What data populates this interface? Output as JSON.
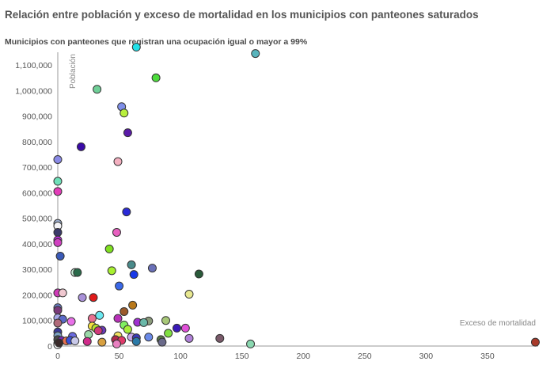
{
  "title": "Relación entre población y exceso de mortalidad en los municipios con panteones saturados",
  "subtitle": "Municipios con panteones que registran una ocupación igual o mayor a 99%",
  "chart_data": {
    "type": "scatter",
    "xlabel": "Exceso de mortalidad",
    "ylabel": "Población",
    "xlim": [
      0,
      390
    ],
    "ylim": [
      0,
      1150000
    ],
    "xticks": [
      0,
      50,
      100,
      150,
      200,
      250,
      300,
      350
    ],
    "yticks": [
      0,
      100000,
      200000,
      300000,
      400000,
      500000,
      600000,
      700000,
      800000,
      900000,
      1000000,
      1100000
    ],
    "xtick_labels": [
      "0",
      "50",
      "100",
      "150",
      "200",
      "250",
      "300",
      "350"
    ],
    "ytick_labels": [
      "0",
      "100,000",
      "200,000",
      "300,000",
      "400,000",
      "500,000",
      "600,000",
      "700,000",
      "800,000",
      "900,000",
      "1,000,000",
      "1,100,000"
    ],
    "grid": false,
    "points": [
      {
        "x": 64,
        "y": 1170000,
        "color": "#22e0e8"
      },
      {
        "x": 161,
        "y": 1145000,
        "color": "#58b4bc"
      },
      {
        "x": 32,
        "y": 1005000,
        "color": "#6fcf97"
      },
      {
        "x": 80,
        "y": 1050000,
        "color": "#4ddc3c"
      },
      {
        "x": 52,
        "y": 937000,
        "color": "#7f8fe8"
      },
      {
        "x": 54,
        "y": 912000,
        "color": "#b8ef3c"
      },
      {
        "x": 57,
        "y": 835000,
        "color": "#5a1aa8"
      },
      {
        "x": 19,
        "y": 780000,
        "color": "#3a0aa8"
      },
      {
        "x": 0,
        "y": 730000,
        "color": "#8a8ae6"
      },
      {
        "x": 49,
        "y": 722000,
        "color": "#f4b0c0"
      },
      {
        "x": 0,
        "y": 645000,
        "color": "#6ee0b8"
      },
      {
        "x": 0,
        "y": 605000,
        "color": "#e23cb8"
      },
      {
        "x": 56,
        "y": 525000,
        "color": "#2a2ad8"
      },
      {
        "x": 0,
        "y": 480000,
        "color": "#9eb0d0"
      },
      {
        "x": 0,
        "y": 470000,
        "color": "#f4f4f8"
      },
      {
        "x": 0,
        "y": 445000,
        "color": "#3a3a6a"
      },
      {
        "x": 48,
        "y": 445000,
        "color": "#e860c0"
      },
      {
        "x": 0,
        "y": 415000,
        "color": "#b82ad8"
      },
      {
        "x": 0,
        "y": 405000,
        "color": "#d040c0"
      },
      {
        "x": 42,
        "y": 380000,
        "color": "#80e020"
      },
      {
        "x": 2,
        "y": 352000,
        "color": "#3a5ab8"
      },
      {
        "x": 60,
        "y": 318000,
        "color": "#4a8a8a"
      },
      {
        "x": 77,
        "y": 305000,
        "color": "#6a70b8"
      },
      {
        "x": 44,
        "y": 295000,
        "color": "#a8f030"
      },
      {
        "x": 14,
        "y": 288000,
        "color": "#c8f0d8"
      },
      {
        "x": 16,
        "y": 288000,
        "color": "#2a6a4a"
      },
      {
        "x": 115,
        "y": 282000,
        "color": "#2a5a3a"
      },
      {
        "x": 62,
        "y": 280000,
        "color": "#1a3ae8"
      },
      {
        "x": 50,
        "y": 235000,
        "color": "#3a68e8"
      },
      {
        "x": 0,
        "y": 208000,
        "color": "#d03ab8"
      },
      {
        "x": 4,
        "y": 208000,
        "color": "#f0c8d0"
      },
      {
        "x": 107,
        "y": 203000,
        "color": "#e8e890"
      },
      {
        "x": 20,
        "y": 190000,
        "color": "#a890d8"
      },
      {
        "x": 29,
        "y": 190000,
        "color": "#e01a1a"
      },
      {
        "x": 61,
        "y": 160000,
        "color": "#b8781a"
      },
      {
        "x": 0,
        "y": 150000,
        "color": "#6a80c8"
      },
      {
        "x": 0,
        "y": 140000,
        "color": "#7a3a7a"
      },
      {
        "x": 54,
        "y": 135000,
        "color": "#9a5a2a"
      },
      {
        "x": 34,
        "y": 120000,
        "color": "#6ae8f0"
      },
      {
        "x": 0,
        "y": 110000,
        "color": "#a8a8e8"
      },
      {
        "x": 4,
        "y": 105000,
        "color": "#5a6ac8"
      },
      {
        "x": 28,
        "y": 108000,
        "color": "#e87090"
      },
      {
        "x": 49,
        "y": 108000,
        "color": "#b830b8"
      },
      {
        "x": 88,
        "y": 100000,
        "color": "#a8c878"
      },
      {
        "x": 74,
        "y": 98000,
        "color": "#8a9a7a"
      },
      {
        "x": 11,
        "y": 96000,
        "color": "#e870e8"
      },
      {
        "x": 0,
        "y": 90000,
        "color": "#b06a7a"
      },
      {
        "x": 65,
        "y": 93000,
        "color": "#a030d0"
      },
      {
        "x": 70,
        "y": 92000,
        "color": "#6ab8a8"
      },
      {
        "x": 54,
        "y": 82000,
        "color": "#80f060"
      },
      {
        "x": 28,
        "y": 78000,
        "color": "#f4e040"
      },
      {
        "x": 31,
        "y": 70000,
        "color": "#b8e030"
      },
      {
        "x": 36,
        "y": 62000,
        "color": "#6a3ab8"
      },
      {
        "x": 33,
        "y": 60000,
        "color": "#d03a7a"
      },
      {
        "x": 57,
        "y": 65000,
        "color": "#a8f038"
      },
      {
        "x": 97,
        "y": 70000,
        "color": "#3a1ab8"
      },
      {
        "x": 104,
        "y": 70000,
        "color": "#e050d8"
      },
      {
        "x": 0,
        "y": 55000,
        "color": "#3a3a9a"
      },
      {
        "x": 0,
        "y": 40000,
        "color": "#7aa0c0"
      },
      {
        "x": 12,
        "y": 38000,
        "color": "#6a6ae0"
      },
      {
        "x": 25,
        "y": 45000,
        "color": "#9ad8a8"
      },
      {
        "x": 49,
        "y": 40000,
        "color": "#f0e060"
      },
      {
        "x": 60,
        "y": 35000,
        "color": "#c8a8e8"
      },
      {
        "x": 64,
        "y": 32000,
        "color": "#3a3ab8"
      },
      {
        "x": 74,
        "y": 35000,
        "color": "#6a8ae8"
      },
      {
        "x": 90,
        "y": 50000,
        "color": "#80e040"
      },
      {
        "x": 107,
        "y": 30000,
        "color": "#b080d8"
      },
      {
        "x": 132,
        "y": 30000,
        "color": "#7a5a6a"
      },
      {
        "x": 0,
        "y": 25000,
        "color": "#4a4a4a"
      },
      {
        "x": 3,
        "y": 22000,
        "color": "#7a2ab8"
      },
      {
        "x": 7,
        "y": 20000,
        "color": "#e87050"
      },
      {
        "x": 10,
        "y": 22000,
        "color": "#3a50d8"
      },
      {
        "x": 14,
        "y": 20000,
        "color": "#c8c8e8"
      },
      {
        "x": 24,
        "y": 18000,
        "color": "#d02a8a"
      },
      {
        "x": 36,
        "y": 15000,
        "color": "#d8a040"
      },
      {
        "x": 47,
        "y": 25000,
        "color": "#b02a4a"
      },
      {
        "x": 52,
        "y": 22000,
        "color": "#e03a6a"
      },
      {
        "x": 64,
        "y": 18000,
        "color": "#2a7aa8"
      },
      {
        "x": 84,
        "y": 25000,
        "color": "#5a7a4a"
      },
      {
        "x": 85,
        "y": 15000,
        "color": "#6a6a8a"
      },
      {
        "x": 0,
        "y": 10000,
        "color": "#c8a020"
      },
      {
        "x": 0,
        "y": 5000,
        "color": "#fafafa"
      },
      {
        "x": 1,
        "y": 12000,
        "color": "#3a2a2a"
      },
      {
        "x": 48,
        "y": 8000,
        "color": "#e880c0"
      },
      {
        "x": 157,
        "y": 8000,
        "color": "#8ad8b0"
      },
      {
        "x": 389,
        "y": 15000,
        "color": "#a83a2a"
      }
    ]
  }
}
